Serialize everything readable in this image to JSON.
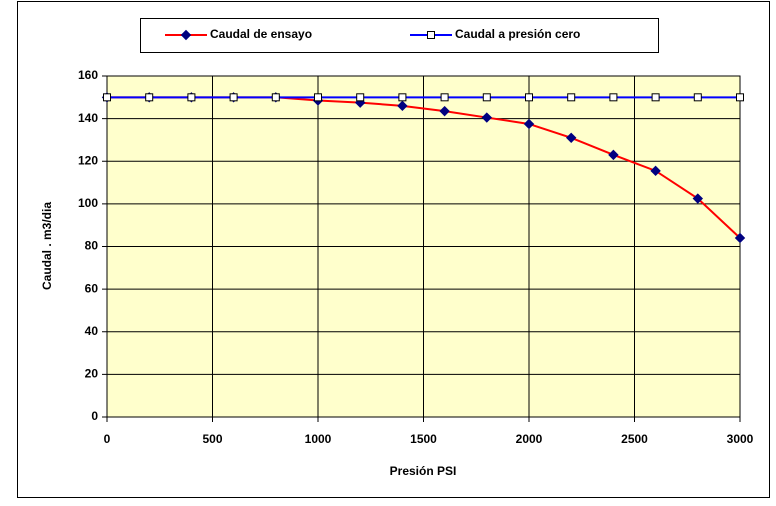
{
  "chart_data": {
    "type": "line",
    "x_label": "Presión PSI",
    "y_label": "Caudal . m3/dia",
    "x": [
      0,
      200,
      400,
      600,
      800,
      1000,
      1200,
      1400,
      1600,
      1800,
      2000,
      2200,
      2400,
      2600,
      2800,
      3000
    ],
    "series": [
      {
        "name": "Caudal de ensayo",
        "color": "#ff0000",
        "marker": "diamond",
        "marker_color": "#000080",
        "values": [
          150,
          150,
          150,
          150,
          150,
          148.5,
          147.5,
          146,
          143.5,
          140.5,
          137.5,
          131,
          123,
          115.5,
          102.5,
          84
        ]
      },
      {
        "name": "Caudal a presión cero",
        "color": "#0000ff",
        "marker": "square",
        "marker_color": "#ffffff",
        "values": [
          150,
          150,
          150,
          150,
          150,
          150,
          150,
          150,
          150,
          150,
          150,
          150,
          150,
          150,
          150,
          150
        ]
      }
    ],
    "xlim": [
      0,
      3000
    ],
    "xticks": [
      0,
      500,
      1000,
      1500,
      2000,
      2500,
      3000
    ],
    "ylim": [
      0,
      160
    ],
    "yticks": [
      0,
      20,
      40,
      60,
      80,
      100,
      120,
      140,
      160
    ],
    "grid": true,
    "plot_background": "#ffffcc",
    "legend": "top"
  }
}
